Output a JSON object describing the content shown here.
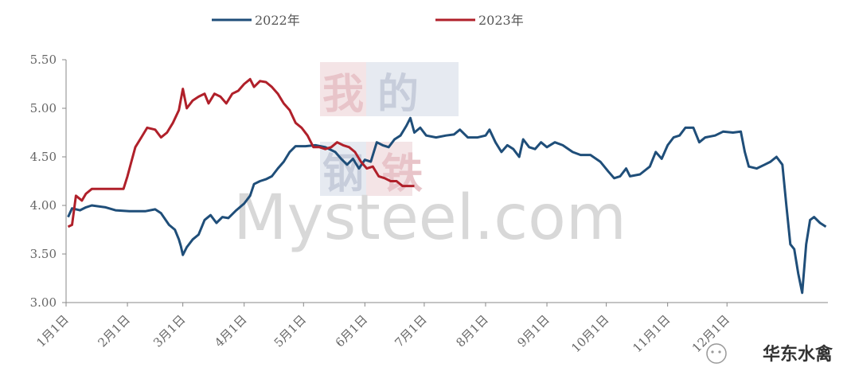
{
  "chart_data": {
    "type": "line",
    "title": "",
    "xlabel": "",
    "ylabel": "",
    "ylim": [
      3.0,
      5.5
    ],
    "y_ticks": [
      "3.00",
      "3.50",
      "4.00",
      "4.50",
      "5.00",
      "5.50"
    ],
    "x_ticks": [
      "1月1日",
      "2月1日",
      "3月1日",
      "4月1日",
      "5月1日",
      "6月1日",
      "7月1日",
      "8月1日",
      "9月1日",
      "10月1日",
      "11月1日",
      "12月1日"
    ],
    "grid": false,
    "legend_position": "top-center",
    "series": [
      {
        "name": "2022年",
        "color": "#1f4e79",
        "points": [
          [
            1,
            3.88
          ],
          [
            3,
            3.97
          ],
          [
            7,
            3.95
          ],
          [
            10,
            3.98
          ],
          [
            13,
            4.0
          ],
          [
            20,
            3.98
          ],
          [
            25,
            3.95
          ],
          [
            32,
            3.94
          ],
          [
            40,
            3.94
          ],
          [
            45,
            3.96
          ],
          [
            48,
            3.92
          ],
          [
            52,
            3.8
          ],
          [
            55,
            3.75
          ],
          [
            57,
            3.65
          ],
          [
            58,
            3.58
          ],
          [
            59,
            3.49
          ],
          [
            61,
            3.57
          ],
          [
            64,
            3.65
          ],
          [
            67,
            3.7
          ],
          [
            70,
            3.85
          ],
          [
            73,
            3.9
          ],
          [
            76,
            3.82
          ],
          [
            79,
            3.88
          ],
          [
            82,
            3.87
          ],
          [
            86,
            3.95
          ],
          [
            90,
            4.02
          ],
          [
            93,
            4.1
          ],
          [
            95,
            4.22
          ],
          [
            98,
            4.25
          ],
          [
            101,
            4.27
          ],
          [
            104,
            4.3
          ],
          [
            107,
            4.38
          ],
          [
            110,
            4.45
          ],
          [
            113,
            4.55
          ],
          [
            116,
            4.61
          ],
          [
            121,
            4.61
          ],
          [
            126,
            4.62
          ],
          [
            131,
            4.6
          ],
          [
            136,
            4.55
          ],
          [
            139,
            4.48
          ],
          [
            142,
            4.42
          ],
          [
            145,
            4.48
          ],
          [
            148,
            4.38
          ],
          [
            151,
            4.47
          ],
          [
            154,
            4.45
          ],
          [
            157,
            4.65
          ],
          [
            160,
            4.62
          ],
          [
            163,
            4.6
          ],
          [
            166,
            4.68
          ],
          [
            169,
            4.72
          ],
          [
            172,
            4.82
          ],
          [
            174,
            4.9
          ],
          [
            176,
            4.75
          ],
          [
            179,
            4.8
          ],
          [
            182,
            4.72
          ],
          [
            187,
            4.7
          ],
          [
            192,
            4.72
          ],
          [
            196,
            4.73
          ],
          [
            199,
            4.78
          ],
          [
            203,
            4.7
          ],
          [
            208,
            4.7
          ],
          [
            212,
            4.72
          ],
          [
            214,
            4.78
          ],
          [
            217,
            4.65
          ],
          [
            220,
            4.55
          ],
          [
            223,
            4.62
          ],
          [
            226,
            4.58
          ],
          [
            229,
            4.5
          ],
          [
            231,
            4.68
          ],
          [
            234,
            4.6
          ],
          [
            237,
            4.58
          ],
          [
            240,
            4.65
          ],
          [
            243,
            4.6
          ],
          [
            247,
            4.65
          ],
          [
            251,
            4.62
          ],
          [
            256,
            4.55
          ],
          [
            260,
            4.52
          ],
          [
            265,
            4.52
          ],
          [
            270,
            4.45
          ],
          [
            274,
            4.35
          ],
          [
            277,
            4.28
          ],
          [
            280,
            4.3
          ],
          [
            283,
            4.38
          ],
          [
            285,
            4.3
          ],
          [
            290,
            4.32
          ],
          [
            295,
            4.4
          ],
          [
            298,
            4.55
          ],
          [
            301,
            4.48
          ],
          [
            304,
            4.62
          ],
          [
            307,
            4.7
          ],
          [
            310,
            4.72
          ],
          [
            313,
            4.8
          ],
          [
            317,
            4.8
          ],
          [
            320,
            4.65
          ],
          [
            323,
            4.7
          ],
          [
            328,
            4.72
          ],
          [
            332,
            4.76
          ],
          [
            337,
            4.75
          ],
          [
            341,
            4.76
          ],
          [
            343,
            4.55
          ],
          [
            345,
            4.4
          ],
          [
            349,
            4.38
          ],
          [
            353,
            4.42
          ],
          [
            356,
            4.45
          ],
          [
            359,
            4.5
          ],
          [
            362,
            4.42
          ],
          [
            364,
            4.0
          ],
          [
            366,
            3.6
          ],
          [
            368,
            3.55
          ],
          [
            370,
            3.3
          ],
          [
            372,
            3.1
          ],
          [
            374,
            3.6
          ],
          [
            376,
            3.85
          ],
          [
            378,
            3.88
          ],
          [
            381,
            3.82
          ],
          [
            384,
            3.78
          ]
        ]
      },
      {
        "name": "2023年",
        "color": "#b0202a",
        "points": [
          [
            1,
            3.78
          ],
          [
            3,
            3.8
          ],
          [
            5,
            4.1
          ],
          [
            8,
            4.05
          ],
          [
            10,
            4.12
          ],
          [
            13,
            4.17
          ],
          [
            20,
            4.17
          ],
          [
            26,
            4.17
          ],
          [
            29,
            4.17
          ],
          [
            31,
            4.3
          ],
          [
            33,
            4.45
          ],
          [
            35,
            4.6
          ],
          [
            38,
            4.7
          ],
          [
            41,
            4.8
          ],
          [
            45,
            4.78
          ],
          [
            48,
            4.7
          ],
          [
            51,
            4.75
          ],
          [
            54,
            4.85
          ],
          [
            57,
            4.98
          ],
          [
            59,
            5.2
          ],
          [
            61,
            5.0
          ],
          [
            64,
            5.08
          ],
          [
            67,
            5.12
          ],
          [
            70,
            5.15
          ],
          [
            72,
            5.05
          ],
          [
            75,
            5.15
          ],
          [
            78,
            5.12
          ],
          [
            81,
            5.05
          ],
          [
            84,
            5.15
          ],
          [
            87,
            5.18
          ],
          [
            90,
            5.25
          ],
          [
            93,
            5.3
          ],
          [
            95,
            5.22
          ],
          [
            98,
            5.28
          ],
          [
            101,
            5.27
          ],
          [
            104,
            5.22
          ],
          [
            107,
            5.15
          ],
          [
            110,
            5.05
          ],
          [
            113,
            4.98
          ],
          [
            116,
            4.85
          ],
          [
            119,
            4.8
          ],
          [
            122,
            4.72
          ],
          [
            125,
            4.6
          ],
          [
            128,
            4.6
          ],
          [
            131,
            4.58
          ],
          [
            134,
            4.6
          ],
          [
            137,
            4.65
          ],
          [
            140,
            4.62
          ],
          [
            143,
            4.6
          ],
          [
            146,
            4.55
          ],
          [
            149,
            4.45
          ],
          [
            152,
            4.38
          ],
          [
            155,
            4.4
          ],
          [
            158,
            4.3
          ],
          [
            161,
            4.28
          ],
          [
            164,
            4.25
          ],
          [
            167,
            4.25
          ],
          [
            170,
            4.2
          ],
          [
            176,
            4.2
          ]
        ]
      }
    ]
  },
  "watermark": {
    "brand_chars": [
      "我",
      "的",
      "钢",
      "铁"
    ],
    "site": "Mysteel.com",
    "account": "华东水禽"
  }
}
